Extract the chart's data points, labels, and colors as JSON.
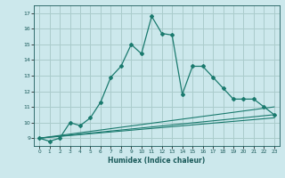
{
  "xlabel": "Humidex (Indice chaleur)",
  "bg_color": "#cce8ec",
  "grid_color": "#aacccc",
  "line_color": "#1a7a6e",
  "xlim": [
    -0.5,
    23.5
  ],
  "ylim": [
    8.5,
    17.5
  ],
  "x_ticks": [
    0,
    1,
    2,
    3,
    4,
    5,
    6,
    7,
    8,
    9,
    10,
    11,
    12,
    13,
    14,
    15,
    16,
    17,
    18,
    19,
    20,
    21,
    22,
    23
  ],
  "y_ticks": [
    9,
    10,
    11,
    12,
    13,
    14,
    15,
    16,
    17
  ],
  "series1_x": [
    0,
    1,
    2,
    3,
    4,
    5,
    6,
    7,
    8,
    9,
    10,
    11,
    12,
    13,
    14,
    15,
    16,
    17,
    18,
    19,
    20,
    21,
    22,
    23
  ],
  "series1_y": [
    9.0,
    8.8,
    9.0,
    10.0,
    9.8,
    10.3,
    11.3,
    12.9,
    13.6,
    15.0,
    14.4,
    16.8,
    15.7,
    15.6,
    11.8,
    13.6,
    13.6,
    12.9,
    12.2,
    11.5,
    11.5,
    11.5,
    11.0,
    10.5
  ],
  "trend1_x": [
    0,
    23
  ],
  "trend1_y": [
    9.0,
    10.3
  ],
  "trend2_x": [
    0,
    23
  ],
  "trend2_y": [
    9.0,
    11.0
  ],
  "trend3_x": [
    0,
    23
  ],
  "trend3_y": [
    9.0,
    10.5
  ]
}
